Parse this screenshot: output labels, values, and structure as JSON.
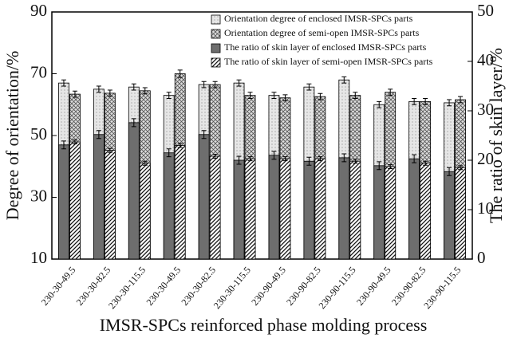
{
  "chart_data": {
    "type": "bar",
    "categories": [
      "230-30-49.5",
      "230-30-82.5",
      "230-30-115.5",
      "230-30-49.5",
      "230-30-82.5",
      "230-30-115.5",
      "230-90-49.5",
      "230-90-82.5",
      "230-90-115.5",
      "230-90-49.5",
      "230-90-82.5",
      "230-90-115.5"
    ],
    "x_label": "IMSR-SPCs reinforced phase molding process",
    "y_label": "Degree of orientation/%",
    "y2_label": "The ratio of skin layer/%",
    "ylim": [
      10,
      90
    ],
    "yticks": [
      10,
      30,
      50,
      70,
      90
    ],
    "y2lim": [
      0,
      50
    ],
    "y2ticks": [
      0,
      10,
      20,
      30,
      40,
      50
    ],
    "legend": "upper right",
    "series": [
      {
        "name": "Orientation degree of enclosed IMSR-SPCs parts",
        "color": "#e6e6e6",
        "pattern": "dots",
        "values": [
          67,
          65,
          65.7,
          63,
          66.5,
          67,
          63,
          65.7,
          68,
          60,
          61,
          60.6
        ],
        "errors": [
          1,
          1,
          1,
          1,
          1,
          1,
          1,
          1,
          1,
          1,
          1,
          1
        ]
      },
      {
        "name": "Orientation degree of semi-open IMSR-SPCs parts",
        "color": "#e6e6e6",
        "pattern": "cross",
        "values": [
          63.4,
          63.7,
          64.5,
          70,
          66.5,
          63,
          62.2,
          62.6,
          63,
          64,
          61,
          61.6
        ],
        "errors": [
          1,
          1,
          1,
          1.2,
          1,
          1,
          1,
          1,
          1,
          1,
          1,
          1
        ]
      },
      {
        "name": "The ratio of skin layer of enclosed IMSR-SPCs parts",
        "color": "#6e6e6e",
        "pattern": "none",
        "axis": "y2",
        "values": [
          23.1,
          25.2,
          27.6,
          21.5,
          25.2,
          20,
          21,
          19.8,
          20.5,
          18.9,
          20.3,
          17.7
        ],
        "errors": [
          0.8,
          0.8,
          0.8,
          0.8,
          0.8,
          0.8,
          0.8,
          0.8,
          0.8,
          0.8,
          0.8,
          0.8
        ]
      },
      {
        "name": "The ratio of skin layer of semi-open IMSR-SPCs parts",
        "color": "#ffffff",
        "pattern": "diagonal",
        "axis": "y2",
        "values": [
          23.7,
          22,
          19.4,
          23,
          20.8,
          20.3,
          20.3,
          20.3,
          19.8,
          18.7,
          19.4,
          18.5
        ],
        "errors": [
          0.4,
          0.4,
          0.4,
          0.4,
          0.4,
          0.4,
          0.4,
          0.4,
          0.4,
          0.4,
          0.4,
          0.4
        ]
      }
    ]
  }
}
